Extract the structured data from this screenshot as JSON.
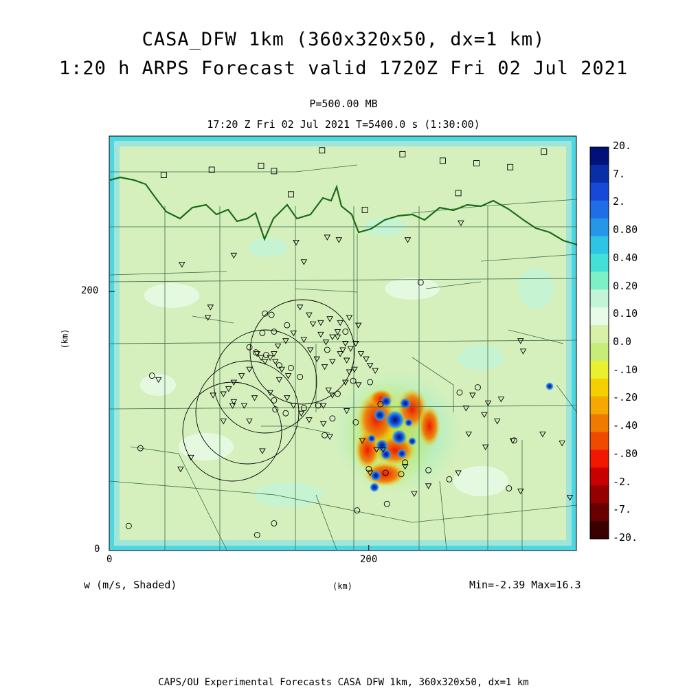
{
  "title_line1": "CASA_DFW 1km (360x320x50, dx=1 km)",
  "title_line2": "1:20 h ARPS Forecast valid 1720Z Fri 02 Jul 2021",
  "level_label": "P=500.00 MB",
  "time_label": "17:20 Z Fri 02 Jul 2021    T=5400.0 s (1:30:00)",
  "variable_label": "w (m/s, Shaded)",
  "x_axis_unit": "(km)",
  "y_axis_unit": "(km)",
  "x_ticks": [
    "0",
    "200"
  ],
  "y_ticks": [
    "0",
    "200"
  ],
  "min_max_label": "Min=-2.39 Max=16.3",
  "footer": "CAPS/OU Experimental Forecasts  CASA DFW 1km, 360x320x50, dx=1 km",
  "colorbar": {
    "labels": [
      "20.",
      "7.",
      "2.",
      "0.80",
      "0.40",
      "0.20",
      "0.10",
      "0.0",
      "-.10",
      "-.20",
      "-.40",
      "-.80",
      "-2.",
      "-7.",
      "-20."
    ],
    "colors": [
      "#00127a",
      "#0a2ea8",
      "#1848d6",
      "#1f6ee8",
      "#2896e6",
      "#2ec4e6",
      "#44e0d8",
      "#7ef0c8",
      "#c2f5d8",
      "#e8fbe8",
      "#d8f0a8",
      "#c8ec78",
      "#e8f030",
      "#f5d000",
      "#f5a800",
      "#f07a00",
      "#f04a00",
      "#f01800",
      "#c80000",
      "#960000",
      "#680000",
      "#3a0000"
    ]
  },
  "domain_km": {
    "x": [
      0,
      360
    ],
    "y": [
      0,
      320
    ]
  },
  "map_colors": {
    "background": "#d5f0bc",
    "border": "#50d6e0",
    "border_inner": "#9ee6da",
    "state_line": "#1b6b1b",
    "county_line": "#3a6a4a",
    "marker": "#000000"
  },
  "station_markers": {
    "square": [
      [
        42,
        290
      ],
      [
        79,
        294
      ],
      [
        117,
        297
      ],
      [
        127,
        293
      ],
      [
        164,
        309
      ],
      [
        226,
        306
      ],
      [
        257,
        301
      ],
      [
        283,
        299
      ],
      [
        309,
        296
      ],
      [
        335,
        308
      ],
      [
        140,
        275
      ],
      [
        197,
        263
      ],
      [
        269,
        276
      ]
    ],
    "triangle": [
      [
        56,
        221
      ],
      [
        96,
        228
      ],
      [
        144,
        238
      ],
      [
        150,
        223
      ],
      [
        168,
        242
      ],
      [
        177,
        240
      ],
      [
        230,
        240
      ],
      [
        271,
        253
      ],
      [
        147,
        188
      ],
      [
        154,
        182
      ],
      [
        163,
        176
      ],
      [
        170,
        179
      ],
      [
        178,
        176
      ],
      [
        185,
        180
      ],
      [
        192,
        174
      ],
      [
        157,
        175
      ],
      [
        163,
        167
      ],
      [
        167,
        161
      ],
      [
        172,
        165
      ],
      [
        176,
        169
      ],
      [
        182,
        160
      ],
      [
        186,
        156
      ],
      [
        190,
        160
      ],
      [
        194,
        152
      ],
      [
        198,
        148
      ],
      [
        201,
        143
      ],
      [
        205,
        139
      ],
      [
        183,
        147
      ],
      [
        178,
        152
      ],
      [
        172,
        146
      ],
      [
        166,
        142
      ],
      [
        160,
        148
      ],
      [
        155,
        155
      ],
      [
        150,
        163
      ],
      [
        142,
        168
      ],
      [
        136,
        162
      ],
      [
        130,
        158
      ],
      [
        127,
        152
      ],
      [
        124,
        149
      ],
      [
        120,
        146
      ],
      [
        117,
        149
      ],
      [
        114,
        152
      ],
      [
        108,
        140
      ],
      [
        102,
        135
      ],
      [
        96,
        130
      ],
      [
        92,
        125
      ],
      [
        88,
        121
      ],
      [
        96,
        115
      ],
      [
        104,
        112
      ],
      [
        112,
        118
      ],
      [
        124,
        122
      ],
      [
        131,
        132
      ],
      [
        138,
        135
      ],
      [
        133,
        140
      ],
      [
        128,
        146
      ],
      [
        137,
        118
      ],
      [
        142,
        112
      ],
      [
        148,
        106
      ],
      [
        154,
        101
      ],
      [
        165,
        112
      ],
      [
        172,
        120
      ],
      [
        182,
        130
      ],
      [
        189,
        140
      ],
      [
        78,
        188
      ],
      [
        76,
        180
      ],
      [
        38,
        132
      ],
      [
        55,
        63
      ],
      [
        63,
        72
      ],
      [
        108,
        100
      ],
      [
        95,
        112
      ],
      [
        80,
        120
      ],
      [
        88,
        100
      ],
      [
        118,
        77
      ],
      [
        170,
        88
      ],
      [
        169,
        124
      ],
      [
        176,
        165
      ],
      [
        180,
        155
      ],
      [
        185,
        138
      ],
      [
        192,
        128
      ],
      [
        183,
        108
      ],
      [
        165,
        98
      ],
      [
        195,
        85
      ],
      [
        206,
        78
      ],
      [
        201,
        60
      ],
      [
        211,
        78
      ],
      [
        228,
        65
      ],
      [
        275,
        110
      ],
      [
        280,
        120
      ],
      [
        292,
        114
      ],
      [
        302,
        117
      ],
      [
        319,
        154
      ],
      [
        317,
        162
      ],
      [
        290,
        80
      ],
      [
        311,
        85
      ],
      [
        334,
        90
      ],
      [
        349,
        83
      ],
      [
        355,
        41
      ],
      [
        317,
        46
      ],
      [
        235,
        44
      ],
      [
        246,
        50
      ],
      [
        269,
        60
      ],
      [
        289,
        105
      ],
      [
        299,
        100
      ],
      [
        277,
        90
      ]
    ],
    "circle": [
      [
        33,
        135
      ],
      [
        113,
        153
      ],
      [
        120,
        183
      ],
      [
        121,
        151
      ],
      [
        131,
        143
      ],
      [
        140,
        141
      ],
      [
        147,
        134
      ],
      [
        150,
        110
      ],
      [
        127,
        116
      ],
      [
        128,
        109
      ],
      [
        136,
        106
      ],
      [
        161,
        112
      ],
      [
        176,
        121
      ],
      [
        188,
        131
      ],
      [
        201,
        130
      ],
      [
        209,
        113
      ],
      [
        190,
        99
      ],
      [
        166,
        89
      ],
      [
        172,
        102
      ],
      [
        240,
        207
      ],
      [
        270,
        122
      ],
      [
        284,
        126
      ],
      [
        312,
        85
      ],
      [
        308,
        48
      ],
      [
        191,
        31
      ],
      [
        214,
        36
      ],
      [
        213,
        60
      ],
      [
        24,
        79
      ],
      [
        15,
        19
      ],
      [
        127,
        21
      ],
      [
        114,
        12
      ],
      [
        225,
        59
      ],
      [
        200,
        63
      ],
      [
        228,
        68
      ],
      [
        246,
        62
      ],
      [
        262,
        55
      ],
      [
        108,
        157
      ],
      [
        168,
        155
      ],
      [
        182,
        169
      ],
      [
        125,
        182
      ],
      [
        118,
        168
      ],
      [
        127,
        169
      ],
      [
        137,
        174
      ]
    ]
  }
}
